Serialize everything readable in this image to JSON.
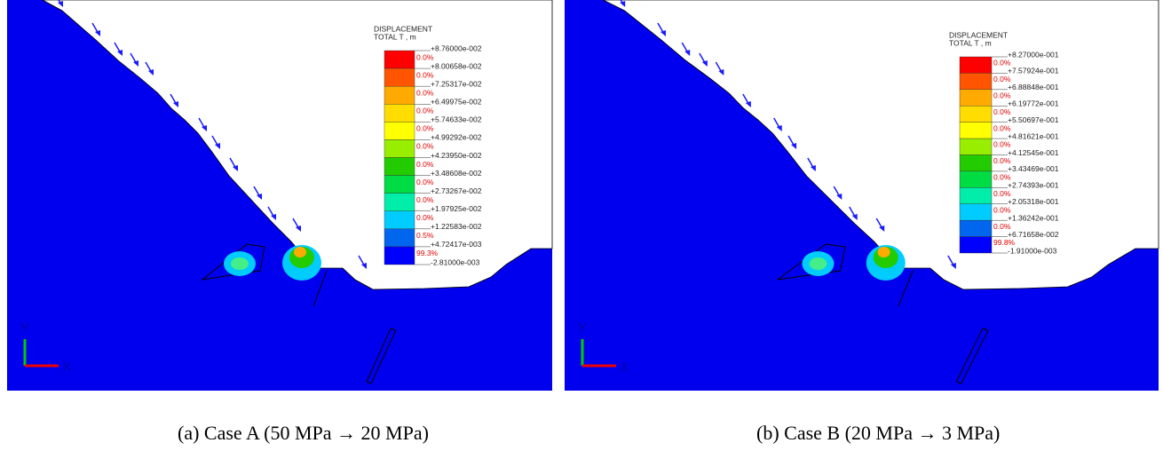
{
  "panels": [
    {
      "legend": {
        "title": [
          "DISPLACEMENT",
          "TOTAL T , m"
        ],
        "levels": [
          "+8.76000e-002",
          "+8.00658e-002",
          "+7.25317e-002",
          "+6.49975e-002",
          "+5.74633e-002",
          "+4.99292e-002",
          "+4.23950e-002",
          "+3.48608e-002",
          "+2.73267e-002",
          "+1.97925e-002",
          "+1.22583e-002",
          "+4.72417e-003",
          "-2.81000e-003"
        ],
        "percents": [
          "0.0%",
          "0.0%",
          "0.0%",
          "0.0%",
          "0.0%",
          "0.0%",
          "0.0%",
          "0.0%",
          "0.0%",
          "0.0%",
          "0.5%",
          "99.3%"
        ]
      },
      "axes": {
        "y": "Y",
        "x": "X"
      },
      "caption": "(a) Case A (50 MPa → 20 MPa)"
    },
    {
      "legend": {
        "title": [
          "DISPLACEMENT",
          "TOTAL T , m"
        ],
        "levels": [
          "+8.27000e-001",
          "+7.57924e-001",
          "+6.88848e-001",
          "+6.19772e-001",
          "+5.50697e-001",
          "+4.81621e-001",
          "+4.12545e-001",
          "+3.43469e-001",
          "+2.74393e-001",
          "+2.05318e-001",
          "+1.36242e-001",
          "+6.71658e-002",
          "-1.91000e-003"
        ],
        "percents": [
          "0.0%",
          "0.0%",
          "0.0%",
          "0.0%",
          "0.0%",
          "0.0%",
          "0.0%",
          "0.0%",
          "0.0%",
          "0.0%",
          "0.0%",
          "99.8%"
        ]
      },
      "axes": {
        "y": "Y",
        "x": "X"
      },
      "caption": "(b) Case B (20 MPa → 3 MPa)"
    }
  ],
  "band_colors": [
    "#ff0000",
    "#ff5500",
    "#ffaa00",
    "#ffdd00",
    "#ffff00",
    "#99ee00",
    "#22cc00",
    "#00dd44",
    "#00eeaa",
    "#00ccff",
    "#0066ee",
    "#0000ff"
  ]
}
